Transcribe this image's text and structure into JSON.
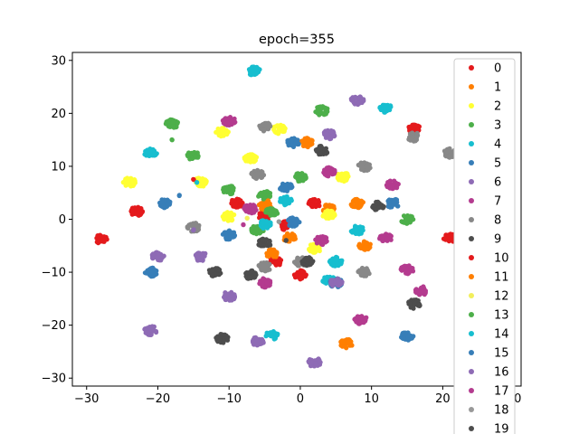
{
  "chart_data": {
    "type": "scatter",
    "title": "epoch=355",
    "xlabel": "",
    "ylabel": "",
    "xlim": [
      -32,
      31
    ],
    "ylim": [
      -31.5,
      31.5
    ],
    "xticks": [
      -30,
      -20,
      -10,
      0,
      10,
      20,
      30
    ],
    "yticks": [
      -30,
      -20,
      -10,
      0,
      10,
      20,
      30
    ],
    "grid": false,
    "legend_position": "right",
    "legend_entries": [
      "0",
      "1",
      "2",
      "3",
      "4",
      "5",
      "6",
      "7",
      "8",
      "9",
      "10",
      "11",
      "12",
      "13",
      "14",
      "15",
      "16",
      "17",
      "18",
      "19"
    ],
    "series": [
      {
        "name": "0",
        "color": "#e41a1c",
        "points": [
          [
            -28,
            -3.8
          ],
          [
            -23,
            1.5
          ],
          [
            -9,
            3
          ],
          [
            -5,
            0.6
          ],
          [
            -2,
            -1.2
          ],
          [
            -3.5,
            -8
          ],
          [
            0,
            -10.5
          ],
          [
            2,
            3
          ],
          [
            16,
            17
          ],
          [
            21,
            -3.5
          ]
        ]
      },
      {
        "name": "1",
        "color": "#ff7f00",
        "points": [
          [
            1,
            14.5
          ],
          [
            -5,
            2.5
          ],
          [
            -4,
            -6.5
          ],
          [
            -1.5,
            -3.5
          ],
          [
            4,
            2
          ],
          [
            8,
            3
          ],
          [
            9,
            -5
          ],
          [
            6.5,
            -23.5
          ]
        ]
      },
      {
        "name": "2",
        "color": "#ffff33",
        "points": [
          [
            -24,
            7
          ],
          [
            -11,
            16.5
          ],
          [
            -3,
            17
          ],
          [
            -7,
            11.5
          ],
          [
            -14,
            7
          ],
          [
            -10,
            0.5
          ],
          [
            6,
            8
          ],
          [
            4,
            0.8
          ],
          [
            2,
            -5.5
          ],
          [
            25,
            8
          ]
        ]
      },
      {
        "name": "3",
        "color": "#4daf4a",
        "points": [
          [
            -18,
            18
          ],
          [
            -15,
            12
          ],
          [
            -10,
            5.5
          ],
          [
            -5,
            4.5
          ],
          [
            -4,
            1.5
          ],
          [
            0,
            8
          ],
          [
            3,
            20.5
          ],
          [
            15,
            0
          ],
          [
            -6,
            -2
          ]
        ]
      },
      {
        "name": "4",
        "color": "#17becf",
        "points": [
          [
            -21,
            12.5
          ],
          [
            -6.5,
            28
          ],
          [
            -4,
            -22
          ],
          [
            12,
            21
          ],
          [
            8,
            -2
          ],
          [
            5,
            -8
          ],
          [
            -5,
            -1
          ],
          [
            -2,
            3.5
          ],
          [
            4,
            -11.5
          ]
        ]
      },
      {
        "name": "5",
        "color": "#377eb8",
        "points": [
          [
            -19,
            3
          ],
          [
            -21,
            -10
          ],
          [
            -10,
            -3
          ],
          [
            -1,
            14.5
          ],
          [
            -2,
            6
          ],
          [
            -1,
            -0.5
          ],
          [
            13,
            3
          ],
          [
            5,
            -12
          ],
          [
            15,
            -22
          ]
        ]
      },
      {
        "name": "6",
        "color": "#8e6bb5",
        "points": [
          [
            -20,
            -7
          ],
          [
            -14,
            -7
          ],
          [
            -10,
            -14.5
          ],
          [
            -21,
            -21
          ],
          [
            -6,
            -23
          ],
          [
            2,
            -27
          ],
          [
            4,
            16
          ],
          [
            8,
            22.5
          ],
          [
            5,
            -12
          ]
        ]
      },
      {
        "name": "7",
        "color": "#b43b8f",
        "points": [
          [
            -10,
            18.5
          ],
          [
            -7,
            2
          ],
          [
            4,
            9
          ],
          [
            13,
            6.5
          ],
          [
            12,
            -3.5
          ],
          [
            15,
            -9.5
          ],
          [
            17,
            -13.5
          ],
          [
            8.5,
            -19
          ],
          [
            -5,
            -12
          ],
          [
            3,
            -4
          ]
        ]
      },
      {
        "name": "8",
        "color": "#888888",
        "points": [
          [
            -5,
            17.5
          ],
          [
            -6,
            8.5
          ],
          [
            -15,
            -1.5
          ],
          [
            -5,
            -9
          ],
          [
            0,
            -8
          ],
          [
            9,
            10
          ],
          [
            9,
            -10
          ],
          [
            16,
            15.5
          ],
          [
            21,
            12.5
          ]
        ]
      },
      {
        "name": "9",
        "color": "#4d4d4d",
        "points": [
          [
            3,
            13
          ],
          [
            -12,
            -10
          ],
          [
            -7,
            -10.5
          ],
          [
            -11,
            -22.5
          ],
          [
            -5,
            -4.5
          ],
          [
            1,
            -8
          ],
          [
            11,
            2.5
          ],
          [
            16,
            -16
          ]
        ]
      },
      {
        "name": "10",
        "color": "#e41a1c",
        "points": [
          [
            -15,
            7.5
          ]
        ]
      },
      {
        "name": "11",
        "color": "#ff7f00",
        "points": [
          [
            -4.5,
            3.5
          ]
        ]
      },
      {
        "name": "12",
        "color": "#f2ef5c",
        "points": [
          [
            -7.5,
            0.2
          ]
        ]
      },
      {
        "name": "13",
        "color": "#4daf4a",
        "points": [
          [
            -18,
            15
          ]
        ]
      },
      {
        "name": "14",
        "color": "#17becf",
        "points": [
          [
            -14.5,
            7
          ]
        ]
      },
      {
        "name": "15",
        "color": "#377eb8",
        "points": [
          [
            -17,
            4.5
          ]
        ]
      },
      {
        "name": "16",
        "color": "#8e6bb5",
        "points": [
          [
            -15,
            -2
          ]
        ]
      },
      {
        "name": "17",
        "color": "#b43b8f",
        "points": [
          [
            -8,
            -1
          ]
        ]
      },
      {
        "name": "18",
        "color": "#999999",
        "points": [
          [
            -3,
            -0.5
          ]
        ]
      },
      {
        "name": "19",
        "color": "#4d4d4d",
        "points": [
          [
            -2,
            -4
          ]
        ]
      }
    ]
  }
}
